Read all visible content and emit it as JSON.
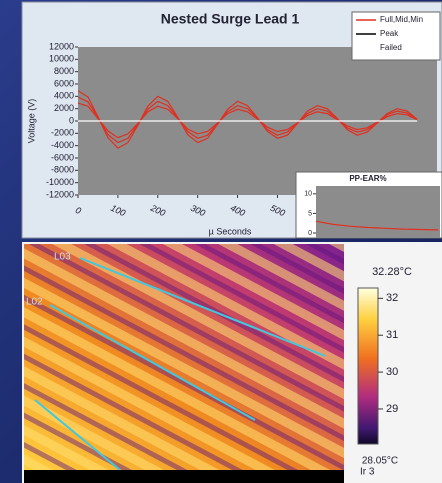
{
  "chart_data": [
    {
      "type": "line",
      "title": "Nested Surge Lead 1",
      "x_label": "µ Seconds",
      "y_label": "Voltage (V)",
      "x": [
        0,
        25,
        50,
        75,
        100,
        125,
        150,
        175,
        200,
        225,
        250,
        275,
        300,
        325,
        350,
        375,
        400,
        425,
        450,
        475,
        500,
        525,
        550,
        575,
        600,
        625,
        650,
        675,
        700,
        725,
        750,
        775,
        800,
        825,
        850
      ],
      "series": [
        {
          "name": "Full,Mid,Min",
          "color": "#e03020",
          "values": [
            4900,
            3900,
            700,
            -2700,
            -4400,
            -3500,
            -700,
            2400,
            4000,
            3200,
            600,
            -2200,
            -3500,
            -2800,
            -500,
            1900,
            3200,
            2500,
            500,
            -1700,
            -2800,
            -2300,
            -400,
            1600,
            2500,
            2000,
            400,
            -1400,
            -2300,
            -1800,
            -300,
            1200,
            2000,
            1600,
            300
          ]
        },
        {
          "color": "#e03020",
          "values": [
            3900,
            3100,
            600,
            -2200,
            -3500,
            -2800,
            -500,
            1900,
            3200,
            2500,
            500,
            -1700,
            -2800,
            -2300,
            -400,
            1500,
            2500,
            2000,
            400,
            -1400,
            -2300,
            -1800,
            -300,
            1200,
            2000,
            1600,
            300,
            -1100,
            -1800,
            -1400,
            -300,
            1000,
            1600,
            1300,
            200
          ]
        },
        {
          "color": "#e03020",
          "values": [
            2900,
            2400,
            400,
            -1600,
            -2700,
            -2100,
            -400,
            1500,
            2400,
            1900,
            400,
            -1300,
            -2100,
            -1700,
            -300,
            1200,
            1900,
            1500,
            300,
            -1000,
            -1700,
            -1400,
            -300,
            900,
            1500,
            1200,
            200,
            -800,
            -1400,
            -1100,
            -200,
            700,
            1200,
            1000,
            200
          ]
        },
        {
          "name": "Peak",
          "color": "#000000",
          "values": [
            null,
            null,
            null,
            null,
            null,
            null,
            null,
            null,
            null,
            null,
            null,
            null,
            null,
            null,
            null,
            null,
            null,
            null,
            null,
            null,
            null,
            null,
            null,
            null,
            null,
            null,
            null,
            null,
            null,
            null,
            null,
            null,
            null,
            null,
            null
          ]
        },
        {
          "name": "Failed",
          "color": "#ffffff",
          "values": [
            0,
            0,
            0,
            0,
            0,
            0,
            0,
            0,
            0,
            0,
            0,
            0,
            0,
            0,
            0,
            0,
            0,
            0,
            0,
            0,
            0,
            0,
            0,
            0,
            0,
            0,
            0,
            0,
            0,
            0,
            0,
            0,
            0,
            0,
            0
          ]
        }
      ],
      "xlim": [
        0,
        900
      ],
      "xticks": [
        0,
        100,
        200,
        300,
        400,
        500
      ],
      "ylim": [
        -12000,
        12000
      ],
      "yticks": [
        12000,
        10000,
        8000,
        6000,
        4000,
        2000,
        0,
        -2000,
        -4000,
        -6000,
        -8000,
        -10000,
        -12000
      ],
      "legend": "upper right"
    },
    {
      "type": "line",
      "title": "PP-EAR%",
      "x": [
        0,
        10,
        20,
        30,
        40,
        50,
        60,
        70
      ],
      "series": [
        {
          "color": "#e03020",
          "values": [
            3,
            2.2,
            1.7,
            1.4,
            1.2,
            1,
            0.9,
            0.8
          ]
        }
      ],
      "xlim": [
        0,
        70
      ],
      "ylim": [
        0,
        12
      ],
      "yticks": [
        0,
        5,
        10
      ]
    }
  ],
  "thermal": {
    "line_labels": [
      "L03",
      "L02"
    ],
    "top_label": "32.28°C",
    "bottom_label": "28.05°C",
    "mode_label": "Ir 3",
    "colorbar": {
      "lim": [
        28.05,
        32.28
      ],
      "ticks": [
        32,
        31,
        30,
        29
      ]
    }
  }
}
